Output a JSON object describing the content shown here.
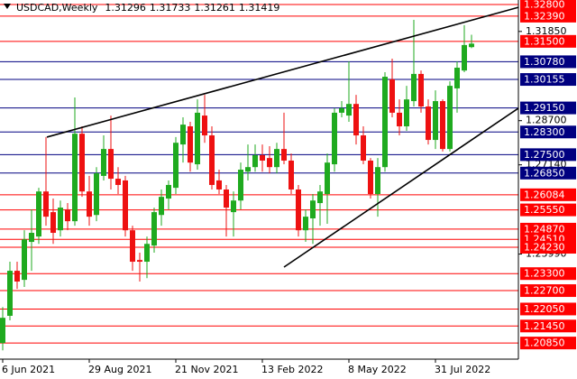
{
  "chart_data": {
    "type": "candlestick",
    "symbol": "USDCAD,Weekly",
    "categories": [
      "6 Jun 2021",
      null,
      null,
      null,
      null,
      null,
      null,
      null,
      null,
      null,
      null,
      null,
      "29 Aug 2021",
      null,
      null,
      null,
      null,
      null,
      null,
      null,
      null,
      null,
      null,
      null,
      "21 Nov 2021",
      null,
      null,
      null,
      null,
      null,
      null,
      null,
      null,
      null,
      null,
      null,
      "13 Feb 2022",
      null,
      null,
      null,
      null,
      null,
      null,
      null,
      null,
      null,
      null,
      null,
      "8 May 2022",
      null,
      null,
      null,
      null,
      null,
      null,
      null,
      null,
      null,
      null,
      null,
      "31 Jul 2022",
      null,
      null,
      null,
      null,
      null
    ],
    "open": [
      1.2085,
      1.2181,
      1.234,
      1.2308,
      1.2442,
      1.2461,
      1.262,
      1.2547,
      1.2483,
      1.2557,
      1.2515,
      1.2824,
      1.262,
      1.2537,
      1.2675,
      1.277,
      1.2665,
      1.2659,
      1.2483,
      1.2378,
      1.2372,
      1.2429,
      1.2537,
      1.2595,
      1.2633,
      1.2786,
      1.285,
      1.2716,
      1.2888,
      1.2818,
      1.2659,
      1.2627,
      1.2547,
      1.2588,
      1.269,
      1.2706,
      1.2748,
      1.2738,
      1.2706,
      1.277,
      1.2729,
      1.2627,
      1.2483,
      1.2525,
      1.2579,
      1.2611,
      1.2716,
      1.2898,
      1.2888,
      1.2929,
      1.2818,
      1.2729,
      1.2611,
      1.2706,
      1.3016,
      1.2898,
      1.285,
      1.2939,
      1.3035,
      1.292,
      1.2802,
      1.2939,
      1.277,
      1.2984,
      1.3047,
      1.31296
    ],
    "high": [
      1.2212,
      1.2372,
      1.2372,
      1.2483,
      1.2557,
      1.2633,
      1.2812,
      1.2595,
      1.2588,
      1.2579,
      1.2952,
      1.285,
      1.2675,
      1.2706,
      1.2818,
      1.2888,
      1.2706,
      1.2675,
      1.2499,
      1.2404,
      1.2461,
      1.2563,
      1.2627,
      1.2659,
      1.2812,
      1.2882,
      1.2866,
      1.2945,
      1.2961,
      1.285,
      1.2697,
      1.2643,
      1.262,
      1.2722,
      1.2786,
      1.2786,
      1.2786,
      1.278,
      1.2792,
      1.2898,
      1.2754,
      1.2643,
      1.2557,
      1.2611,
      1.2643,
      1.2754,
      1.2914,
      1.2939,
      1.3079,
      1.2961,
      1.285,
      1.2738,
      1.2738,
      1.3041,
      1.3089,
      1.2945,
      1.2993,
      1.3226,
      1.3047,
      1.2945,
      1.2977,
      1.2945,
      1.3009,
      1.3079,
      1.3207,
      1.31733
    ],
    "low": [
      1.2059,
      1.2165,
      1.2276,
      1.2283,
      1.234,
      1.2435,
      1.2499,
      1.2435,
      1.2461,
      1.2483,
      1.2499,
      1.2601,
      1.2499,
      1.2515,
      1.2659,
      1.2627,
      1.2611,
      1.2461,
      1.234,
      1.2302,
      1.2314,
      1.2404,
      1.2499,
      1.2557,
      1.2611,
      1.2722,
      1.269,
      1.2697,
      1.2792,
      1.2627,
      1.2611,
      1.2461,
      1.2461,
      1.2557,
      1.2659,
      1.269,
      1.269,
      1.2684,
      1.2684,
      1.2716,
      1.2611,
      1.2461,
      1.2442,
      1.2435,
      1.2499,
      1.2506,
      1.269,
      1.2882,
      1.2866,
      1.2786,
      1.2716,
      1.2595,
      1.2531,
      1.269,
      1.2882,
      1.2818,
      1.2834,
      1.292,
      1.2898,
      1.2786,
      1.277,
      1.2761,
      1.2761,
      1.2898,
      1.3041,
      1.31261
    ],
    "close": [
      1.2174,
      1.234,
      1.2302,
      1.2451,
      1.2474,
      1.262,
      1.2531,
      1.2474,
      1.2563,
      1.2515,
      1.2824,
      1.262,
      1.2531,
      1.2684,
      1.277,
      1.2665,
      1.2643,
      1.2483,
      1.2372,
      1.2372,
      1.2435,
      1.2547,
      1.2601,
      1.2643,
      1.2792,
      1.2856,
      1.2722,
      1.2898,
      1.2818,
      1.2643,
      1.2627,
      1.2563,
      1.2588,
      1.2697,
      1.2706,
      1.2748,
      1.2729,
      1.2706,
      1.277,
      1.2729,
      1.2627,
      1.2483,
      1.2531,
      1.2588,
      1.262,
      1.2722,
      1.2898,
      1.2914,
      1.2929,
      1.2818,
      1.2729,
      1.2611,
      1.2706,
      1.3025,
      1.2898,
      1.285,
      1.2945,
      1.3035,
      1.292,
      1.2802,
      1.2939,
      1.277,
      1.2993,
      1.3057,
      1.3137,
      1.31419
    ],
    "up_color": "#1faa1f",
    "down_color": "#ee1111",
    "xlim": [
      -0.375,
      71.5
    ],
    "ylim": [
      1.2028,
      1.3296
    ],
    "yticks": [
      {
        "value": 1.3185,
        "label": "1.31850"
      },
      {
        "value": 1.287,
        "label": "1.28700"
      },
      {
        "value": 1.2714,
        "label": "1.27140"
      },
      {
        "value": 1.2399,
        "label": "1.23990"
      }
    ],
    "levels": [
      {
        "value": 1.328,
        "label": "1.32800",
        "color": "#ff0000"
      },
      {
        "value": 1.3239,
        "label": "1.32390",
        "color": "#ff0000"
      },
      {
        "value": 1.315,
        "label": "1.31500",
        "color": "#ff0000"
      },
      {
        "value": 1.3078,
        "label": "1.30780",
        "color": "#000080"
      },
      {
        "value": 1.30155,
        "label": "1.30155",
        "color": "#000080"
      },
      {
        "value": 1.2915,
        "label": "1.29150",
        "color": "#000080"
      },
      {
        "value": 1.283,
        "label": "1.28300",
        "color": "#000080"
      },
      {
        "value": 1.275,
        "label": "1.27500",
        "color": "#000080"
      },
      {
        "value": 1.2685,
        "label": "1.26850",
        "color": "#000080"
      },
      {
        "value": 1.26084,
        "label": "1.26084",
        "color": "#ff0000"
      },
      {
        "value": 1.2555,
        "label": "1.25550",
        "color": "#ff0000"
      },
      {
        "value": 1.2487,
        "label": "1.24870",
        "color": "#ff0000"
      },
      {
        "value": 1.2451,
        "label": "1.24510",
        "color": "#ff0000"
      },
      {
        "value": 1.2423,
        "label": "1.24230",
        "color": "#ff0000"
      },
      {
        "value": 1.233,
        "label": "1.23300",
        "color": "#ff0000"
      },
      {
        "value": 1.227,
        "label": "1.22700",
        "color": "#ff0000"
      },
      {
        "value": 1.2205,
        "label": "1.22050",
        "color": "#ff0000"
      },
      {
        "value": 1.2145,
        "label": "1.21450",
        "color": "#ff0000"
      },
      {
        "value": 1.2085,
        "label": "1.20850",
        "color": "#ff0000"
      }
    ],
    "trendlines": [
      {
        "points": [
          {
            "x": 6.125,
            "y": 1.2812
          },
          {
            "x": 71.5,
            "y": 1.327
          }
        ]
      },
      {
        "points": [
          {
            "x": 39,
            "y": 1.2353
          },
          {
            "x": 71.5,
            "y": 1.2914
          }
        ]
      }
    ]
  }
}
